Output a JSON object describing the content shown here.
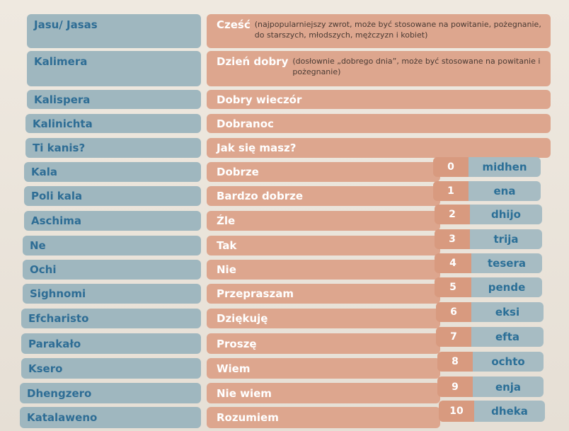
{
  "phrases": [
    {
      "greek": "Jasu/ Jasas",
      "polish": "Cześć",
      "note": "(najpopularniejszy zwrot, może być stosowane na powitanie, pożegnanie, do starszych, młodszych, mężczyzn i kobiet)"
    },
    {
      "greek": "Kalimera",
      "polish": "Dzień dobry",
      "note": "(dosłownie „dobrego dnia”, może być stosowane na powitanie i pożegnanie)"
    },
    {
      "greek": "Kalispera",
      "polish": "Dobry wieczór"
    },
    {
      "greek": "Kalinichta",
      "polish": "Dobranoc"
    },
    {
      "greek": "Ti kanis?",
      "polish": "Jak się masz?"
    },
    {
      "greek": "Kala",
      "polish": "Dobrze"
    },
    {
      "greek": "Poli kala",
      "polish": "Bardzo dobrze"
    },
    {
      "greek": "Aschima",
      "polish": "Źle"
    },
    {
      "greek": "Ne",
      "polish": "Tak"
    },
    {
      "greek": "Ochi",
      "polish": "Nie"
    },
    {
      "greek": "Sighnomi",
      "polish": "Przepraszam"
    },
    {
      "greek": "Efcharisto",
      "polish": "Dziękuję"
    },
    {
      "greek": "Parakało",
      "polish": "Proszę"
    },
    {
      "greek": "Ksero",
      "polish": "Wiem"
    },
    {
      "greek": "Dhengzero",
      "polish": "Nie wiem"
    },
    {
      "greek": "Katalaweno",
      "polish": "Rozumiem"
    }
  ],
  "numbers": [
    {
      "digit": "0",
      "word": "midhen"
    },
    {
      "digit": "1",
      "word": "ena"
    },
    {
      "digit": "2",
      "word": "dhijo"
    },
    {
      "digit": "3",
      "word": "trija"
    },
    {
      "digit": "4",
      "word": "tesera"
    },
    {
      "digit": "5",
      "word": "pende"
    },
    {
      "digit": "6",
      "word": "eksi"
    },
    {
      "digit": "7",
      "word": "efta"
    },
    {
      "digit": "8",
      "word": "ochto"
    },
    {
      "digit": "9",
      "word": "enja"
    },
    {
      "digit": "10",
      "word": "dheka"
    }
  ],
  "colors": {
    "greek_box": "#9fb7bf",
    "greek_text": "#2e6d95",
    "polish_box": "#dda68e",
    "polish_text": "#ffffff",
    "number_box": "#d89a7f"
  }
}
